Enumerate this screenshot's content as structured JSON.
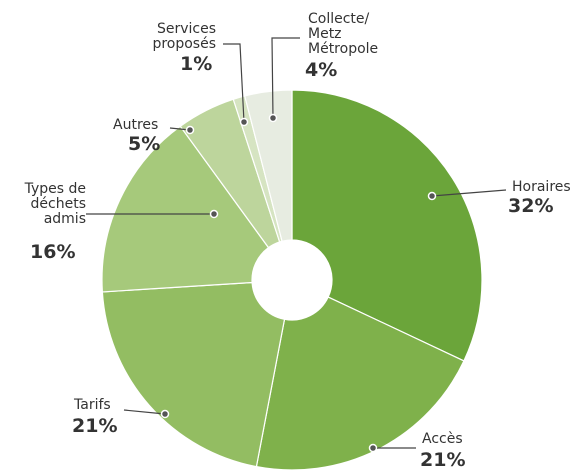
{
  "chart_data": {
    "type": "donut",
    "categories": [
      "Horaires",
      "Accès",
      "Tarifs",
      "Types de\ndéchets\nadmis",
      "Autres",
      "Services\nproposés",
      "Collecte/\nMetz\nMétropole"
    ],
    "values": [
      32,
      21,
      21,
      16,
      5,
      1,
      4
    ],
    "value_labels": [
      "32%",
      "21%",
      "21%",
      "16%",
      "5%",
      "1%",
      "4%"
    ],
    "colors": [
      "#6ba53a",
      "#7fb14b",
      "#93bd62",
      "#a6c97b",
      "#bdd59c",
      "#d6e4c2",
      "#e7ece1"
    ]
  }
}
